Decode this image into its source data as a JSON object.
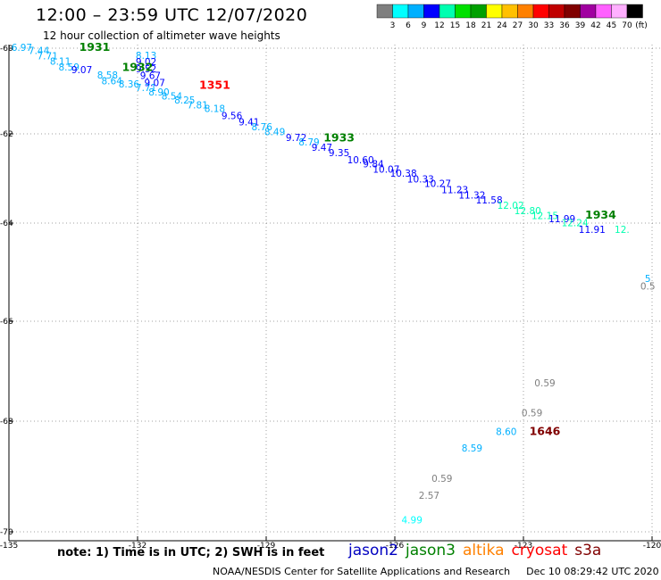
{
  "header": {
    "title": "12:00 – 23:59 UTC 12/07/2020",
    "subtitle": "12 hour collection of altimeter wave heights"
  },
  "colorbar": {
    "colors": [
      "#7f7f7f",
      "#00ffff",
      "#00b0ff",
      "#0000ff",
      "#00ffb0",
      "#00e000",
      "#00a000",
      "#ffff00",
      "#ffc000",
      "#ff8000",
      "#ff0000",
      "#c00000",
      "#800000",
      "#a000a0",
      "#ff60ff",
      "#ffb0ff",
      "#000000"
    ],
    "labels": [
      "3",
      "6",
      "9",
      "12",
      "15",
      "18",
      "21",
      "24",
      "27",
      "30",
      "33",
      "36",
      "39",
      "42",
      "45",
      "70"
    ],
    "unit": "(ft)"
  },
  "chart_data": {
    "type": "scatter",
    "xlim": [
      -135,
      -120
    ],
    "ylim": [
      -70,
      -60
    ],
    "x_ticks": [
      "-135",
      "-132",
      "-129",
      "-126",
      "-123",
      "-120"
    ],
    "y_ticks": [
      "-60",
      "-62",
      "-64",
      "-66",
      "-68",
      "-70"
    ],
    "grid": true,
    "points": [
      {
        "x": -134.7,
        "y": -60.06,
        "v": "6.97",
        "c": "#00b0ff"
      },
      {
        "x": -134.3,
        "y": -60.14,
        "v": "7.44",
        "c": "#00b0ff"
      },
      {
        "x": -134.1,
        "y": -60.26,
        "v": "7.71",
        "c": "#00b0ff"
      },
      {
        "x": -133.8,
        "y": -60.39,
        "v": "8.11",
        "c": "#00b0ff"
      },
      {
        "x": -133.6,
        "y": -60.52,
        "v": "8.59",
        "c": "#00b0ff"
      },
      {
        "x": -133.3,
        "y": -60.58,
        "v": "9.07",
        "c": "#0000ff"
      },
      {
        "x": -132.7,
        "y": -60.71,
        "v": "8.58",
        "c": "#00b0ff"
      },
      {
        "x": -132.6,
        "y": -60.84,
        "v": "8.64",
        "c": "#00b0ff"
      },
      {
        "x": -132.2,
        "y": -60.92,
        "v": "8.36",
        "c": "#00b0ff"
      },
      {
        "x": -131.8,
        "y": -61.0,
        "v": "7.71",
        "c": "#00b0ff"
      },
      {
        "x": -131.5,
        "y": -61.1,
        "v": "8.90",
        "c": "#00b0ff"
      },
      {
        "x": -131.2,
        "y": -61.2,
        "v": "8.54",
        "c": "#00b0ff"
      },
      {
        "x": -130.9,
        "y": -61.29,
        "v": "8.25",
        "c": "#00b0ff"
      },
      {
        "x": -130.6,
        "y": -61.41,
        "v": "7.81",
        "c": "#00b0ff"
      },
      {
        "x": -130.2,
        "y": -61.49,
        "v": "8.18",
        "c": "#00b0ff"
      },
      {
        "x": -129.8,
        "y": -61.66,
        "v": "9.56",
        "c": "#0000ff"
      },
      {
        "x": -129.4,
        "y": -61.8,
        "v": "9.41",
        "c": "#0000ff"
      },
      {
        "x": -129.1,
        "y": -61.92,
        "v": "8.76",
        "c": "#00b0ff"
      },
      {
        "x": -128.8,
        "y": -62.03,
        "v": "8.49",
        "c": "#00b0ff"
      },
      {
        "x": -128.3,
        "y": -62.16,
        "v": "9.72",
        "c": "#0000ff"
      },
      {
        "x": -128.0,
        "y": -62.26,
        "v": "8.79",
        "c": "#00b0ff"
      },
      {
        "x": -127.7,
        "y": -62.38,
        "v": "9.47",
        "c": "#0000ff"
      },
      {
        "x": -127.3,
        "y": -62.5,
        "v": "9.35",
        "c": "#0000ff"
      },
      {
        "x": -126.8,
        "y": -62.66,
        "v": "10.60",
        "c": "#0000ff"
      },
      {
        "x": -126.5,
        "y": -62.75,
        "v": "9.84",
        "c": "#0000ff"
      },
      {
        "x": -126.2,
        "y": -62.87,
        "v": "10.07",
        "c": "#0000ff"
      },
      {
        "x": -125.8,
        "y": -62.96,
        "v": "10.38",
        "c": "#0000ff"
      },
      {
        "x": -125.4,
        "y": -63.09,
        "v": "10.33",
        "c": "#0000ff"
      },
      {
        "x": -125.0,
        "y": -63.19,
        "v": "10.27",
        "c": "#0000ff"
      },
      {
        "x": -124.6,
        "y": -63.33,
        "v": "11.23",
        "c": "#0000ff"
      },
      {
        "x": -124.2,
        "y": -63.45,
        "v": "11.32",
        "c": "#0000ff"
      },
      {
        "x": -123.8,
        "y": -63.56,
        "v": "11.58",
        "c": "#0000ff"
      },
      {
        "x": -123.3,
        "y": -63.68,
        "v": "12.02",
        "c": "#00ffb0"
      },
      {
        "x": -122.9,
        "y": -63.8,
        "v": "12.80",
        "c": "#00ffb0"
      },
      {
        "x": -122.5,
        "y": -63.91,
        "v": "12.15",
        "c": "#00ffb0"
      },
      {
        "x": -122.1,
        "y": -63.98,
        "v": "11.99",
        "c": "#0000ff"
      },
      {
        "x": -121.8,
        "y": -64.06,
        "v": "12.24",
        "c": "#00ffb0"
      },
      {
        "x": -121.4,
        "y": -64.2,
        "v": "11.91",
        "c": "#0000ff"
      },
      {
        "x": -120.7,
        "y": -64.2,
        "v": "12.",
        "c": "#00ffb0"
      },
      {
        "x": -120.1,
        "y": -65.35,
        "v": "0.5",
        "c": "#7f7f7f"
      },
      {
        "x": -120.1,
        "y": -65.2,
        "v": "5",
        "c": "#00b0ff"
      },
      {
        "x": -131.8,
        "y": -60.25,
        "v": "8.13",
        "c": "#00b0ff"
      },
      {
        "x": -131.8,
        "y": -60.4,
        "v": "9.02",
        "c": "#0000ff"
      },
      {
        "x": -131.8,
        "y": -60.56,
        "v": "9.52",
        "c": "#0000ff"
      },
      {
        "x": -131.7,
        "y": -60.72,
        "v": "9.67",
        "c": "#0000ff"
      },
      {
        "x": -131.6,
        "y": -60.89,
        "v": "9.07",
        "c": "#0000ff"
      },
      {
        "x": -122.5,
        "y": -67.3,
        "v": "0.59",
        "c": "#7f7f7f"
      },
      {
        "x": -122.8,
        "y": -67.9,
        "v": "0.59",
        "c": "#7f7f7f"
      },
      {
        "x": -123.4,
        "y": -68.25,
        "v": "8.60",
        "c": "#00b0ff"
      },
      {
        "x": -124.2,
        "y": -68.55,
        "v": "8.59",
        "c": "#00b0ff"
      },
      {
        "x": -124.9,
        "y": -69.1,
        "v": "0.59",
        "c": "#7f7f7f"
      },
      {
        "x": -125.2,
        "y": -69.4,
        "v": "2.57",
        "c": "#7f7f7f"
      },
      {
        "x": -125.6,
        "y": -69.85,
        "v": "4.99",
        "c": "#00ffff"
      }
    ],
    "time_labels": [
      {
        "x": -133.0,
        "y": -60.06,
        "t": "1931",
        "c": "#008000"
      },
      {
        "x": -132.0,
        "y": -60.53,
        "t": "1932",
        "c": "#008000"
      },
      {
        "x": -127.3,
        "y": -62.17,
        "t": "1933",
        "c": "#008000"
      },
      {
        "x": -121.2,
        "y": -63.9,
        "t": "1934",
        "c": "#008000"
      },
      {
        "x": -130.2,
        "y": -60.95,
        "t": "1351",
        "c": "#ff0000"
      },
      {
        "x": -122.5,
        "y": -68.25,
        "t": "1646",
        "c": "#800000"
      }
    ]
  },
  "legend": {
    "note": "note: 1) Time is in UTC; 2) SWH is in feet",
    "satellites": [
      {
        "name": "jason2",
        "color": "#0000c0"
      },
      {
        "name": "jason3",
        "color": "#008000"
      },
      {
        "name": "altika",
        "color": "#ff8000"
      },
      {
        "name": "cryosat",
        "color": "#ff0000"
      },
      {
        "name": "s3a",
        "color": "#800000"
      }
    ]
  },
  "footer": {
    "credit": "NOAA/NESDIS Center for Satellite Applications and Research",
    "timestamp": "Dec 10 08:29:42 UTC 2020"
  }
}
